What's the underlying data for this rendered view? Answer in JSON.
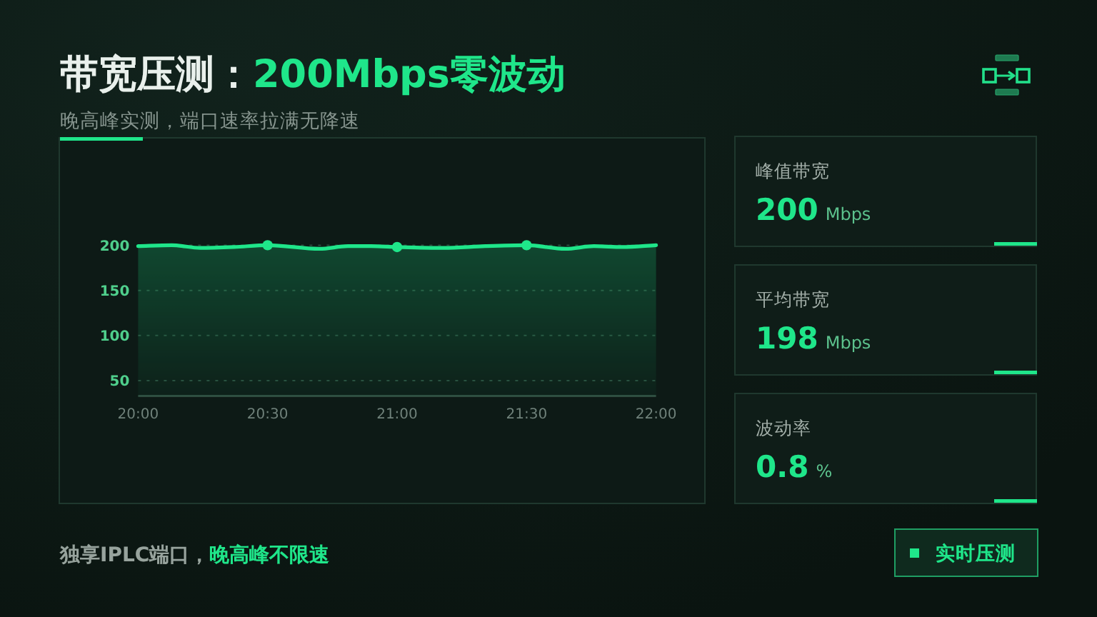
{
  "chart_data": [
    {
      "type": "area",
      "title": "带宽压测：200Mbps零波动",
      "subtitle": "晚高峰实测，端口速率拉满无降速",
      "x": [
        20,
        20.13,
        20.24,
        20.37,
        20.5,
        20.7,
        20.81,
        20.9,
        21,
        21.18,
        21.34,
        21.5,
        21.65,
        21.76,
        21.87,
        22
      ],
      "series": [
        {
          "type": "area",
          "color": "#1fe68a",
          "values": [
            199,
            200,
            197,
            198,
            200,
            196,
            199,
            199,
            198,
            197,
            199,
            200,
            196,
            199,
            198,
            200
          ]
        },
        {
          "type": "scatter",
          "color": "#1fe68a",
          "marker": "circle",
          "x": [
            20.5,
            21,
            21.5
          ],
          "values": [
            200,
            198,
            200
          ]
        }
      ],
      "xlim": [
        20,
        22
      ],
      "xticks": [
        {
          "value": 20,
          "label": "20:00"
        },
        {
          "value": 20.5,
          "label": "20:30"
        },
        {
          "value": 21,
          "label": "21:00"
        },
        {
          "value": 21.5,
          "label": "21:30"
        },
        {
          "value": 22,
          "label": "22:00"
        }
      ],
      "ylim": [
        33,
        200
      ],
      "yticks": [
        50,
        100,
        150,
        200
      ],
      "grid": "y"
    },
    {
      "type": "other",
      "title": "峰值带宽",
      "annotations": [
        "200",
        "Mbps"
      ]
    },
    {
      "type": "other",
      "title": "平均带宽",
      "annotations": [
        "198",
        "Mbps"
      ]
    },
    {
      "type": "other",
      "title": "波动率",
      "annotations": [
        "0.8",
        "%"
      ]
    },
    {
      "type": "other",
      "annotations": [
        "独享IPLC端口，",
        "晚高峰不限速",
        "实时压测"
      ]
    }
  ]
}
